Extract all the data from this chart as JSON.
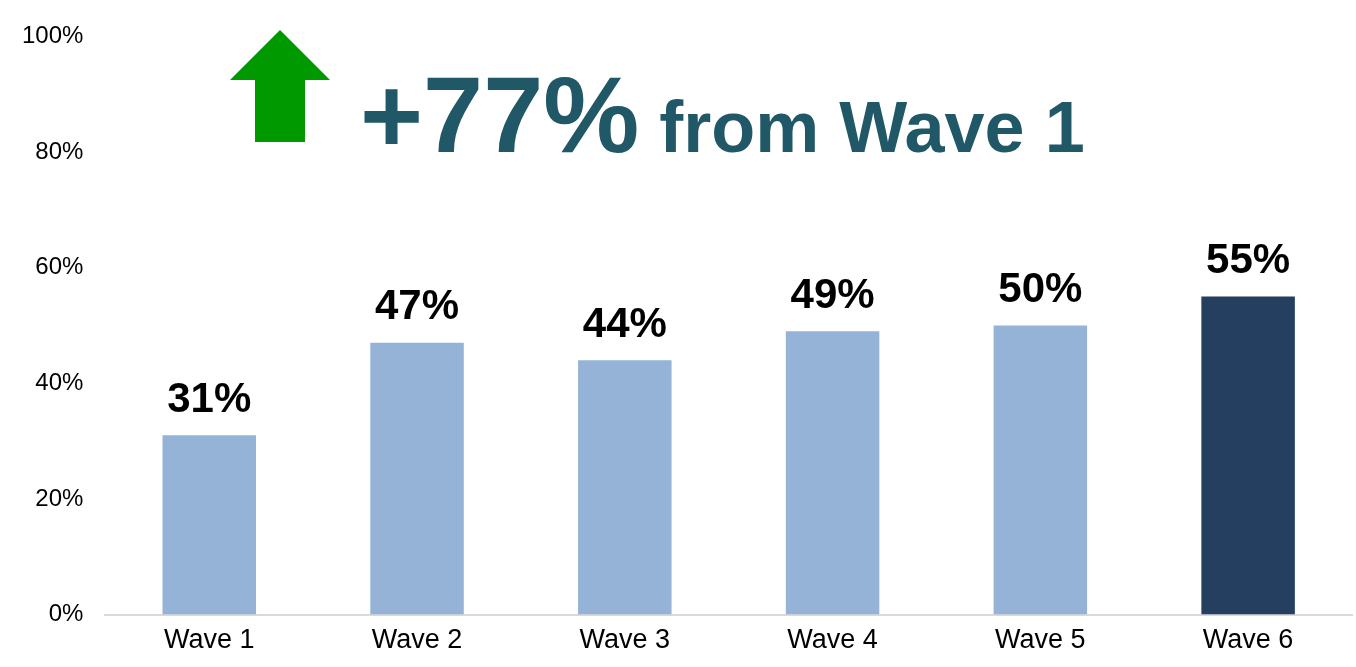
{
  "chart_data": {
    "type": "bar",
    "categories": [
      "Wave 1",
      "Wave 2",
      "Wave 3",
      "Wave 4",
      "Wave 5",
      "Wave 6"
    ],
    "values": [
      31,
      47,
      44,
      49,
      50,
      55
    ],
    "colors": [
      "#95b3d7",
      "#95b3d7",
      "#95b3d7",
      "#95b3d7",
      "#95b3d7",
      "#243f60"
    ],
    "value_labels": [
      "31%",
      "47%",
      "44%",
      "49%",
      "50%",
      "55%"
    ],
    "ylim": [
      0,
      100
    ],
    "yticks": [
      {
        "value": 0,
        "label": "0%"
      },
      {
        "value": 20,
        "label": "20%"
      },
      {
        "value": 40,
        "label": "40%"
      },
      {
        "value": 60,
        "label": "60%"
      },
      {
        "value": 80,
        "label": "80%"
      },
      {
        "value": 100,
        "label": "100%"
      }
    ],
    "annotations": [
      "+77% from Wave 1"
    ],
    "grid": false,
    "legend": false
  }
}
